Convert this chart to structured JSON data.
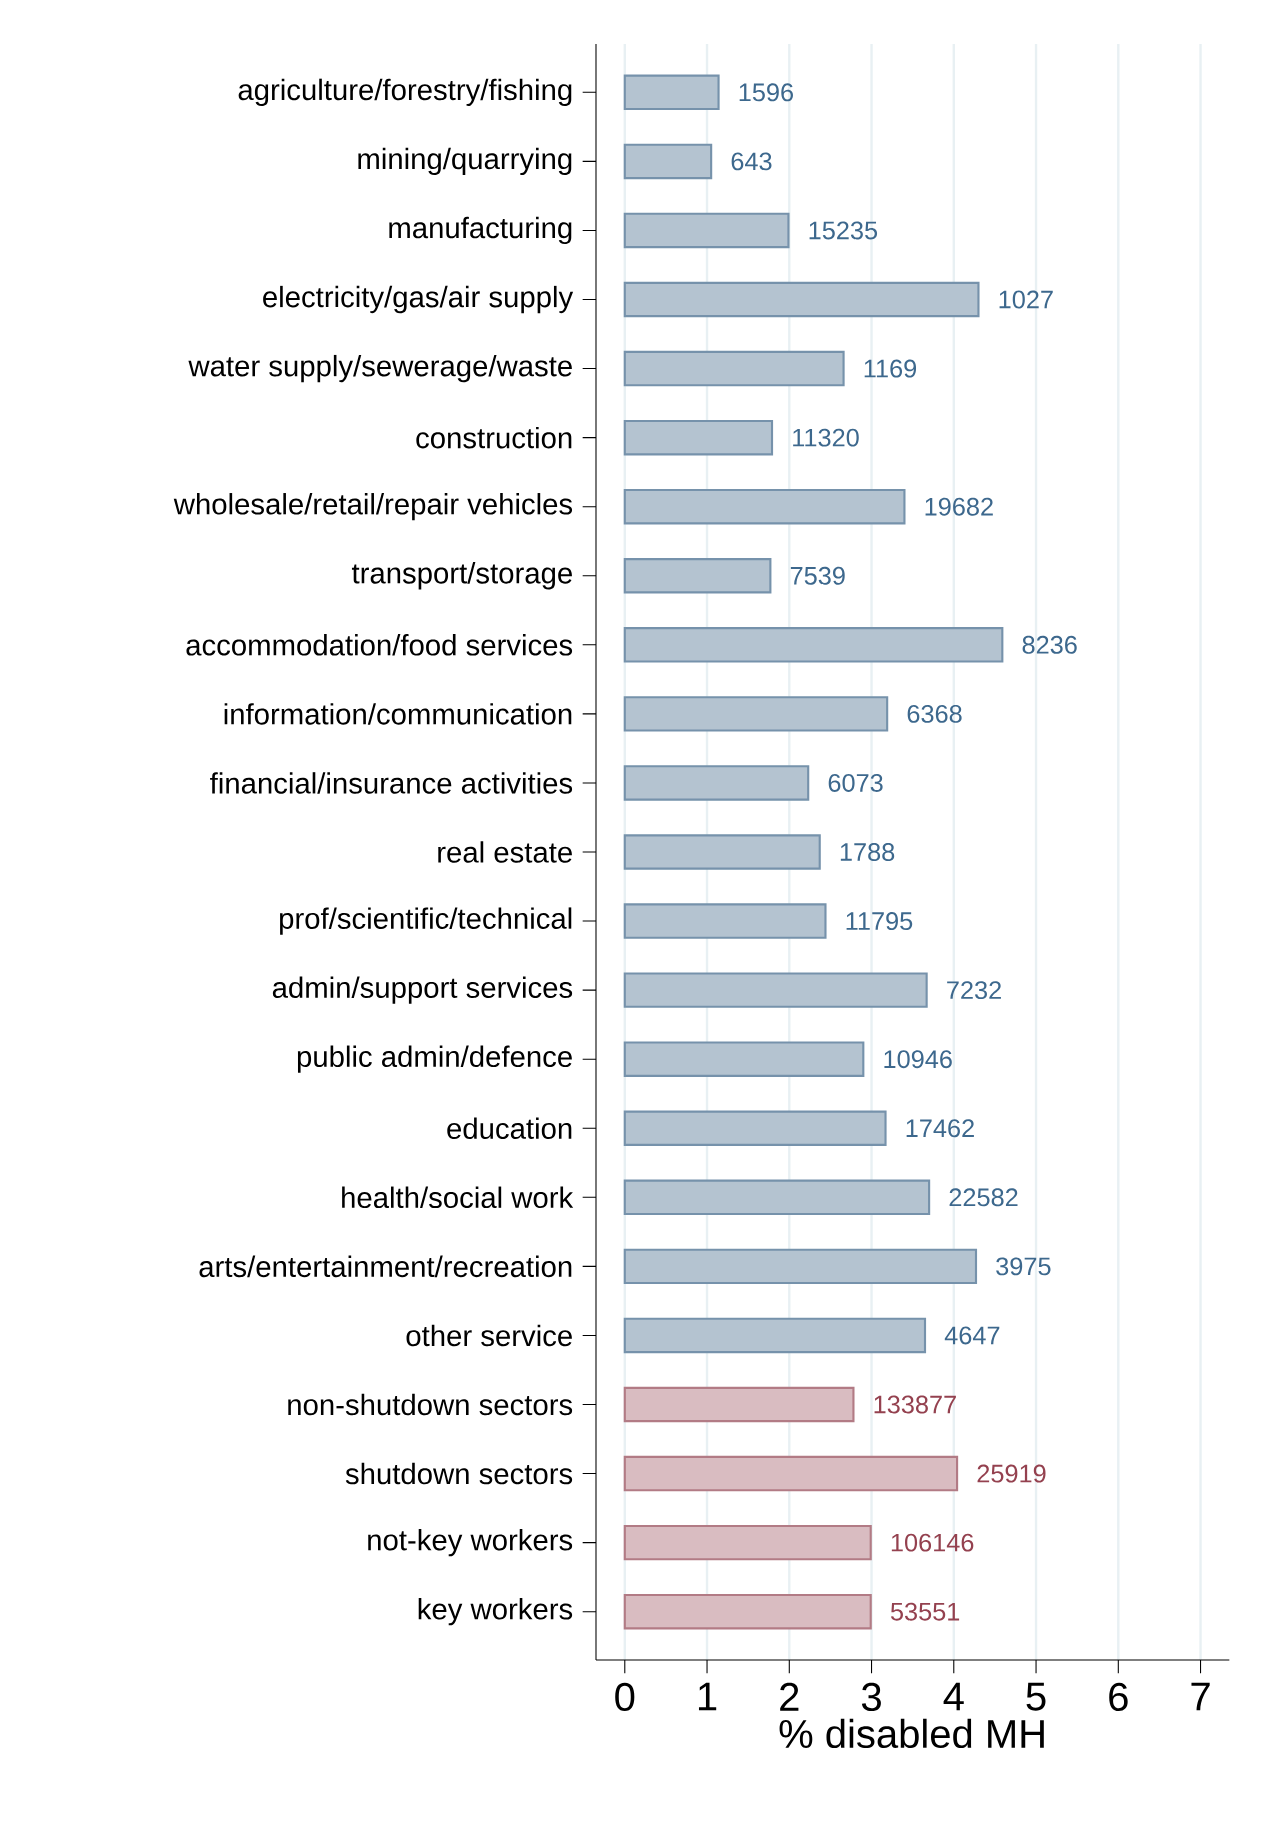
{
  "chart_data": {
    "type": "bar",
    "orientation": "horizontal",
    "xlabel": "% disabled MH",
    "categories": [
      "agriculture/forestry/fishing",
      "mining/quarrying",
      "manufacturing",
      "electricity/gas/air supply",
      "water supply/sewerage/waste",
      "construction",
      "wholesale/retail/repair vehicles",
      "transport/storage",
      "accommodation/food services",
      "information/communication",
      "financial/insurance activities",
      "real estate",
      "prof/scientific/technical",
      "admin/support services",
      "public admin/defence",
      "education",
      "health/social work",
      "arts/entertainment/recreation",
      "other service",
      "non-shutdown sectors",
      "shutdown sectors",
      "not-key workers",
      "key workers"
    ],
    "values": [
      1.14,
      1.05,
      1.99,
      4.3,
      2.66,
      1.79,
      3.4,
      1.77,
      4.59,
      3.19,
      2.23,
      2.37,
      2.44,
      3.67,
      2.9,
      3.17,
      3.7,
      4.27,
      3.65,
      2.78,
      4.04,
      2.99,
      2.99
    ],
    "annotations": [
      {
        "text": "1596",
        "x": 1.14,
        "y": "agriculture/forestry/fishing"
      },
      {
        "text": "643",
        "x": 1.05,
        "y": "mining/quarrying"
      },
      {
        "text": "15235",
        "x": 1.99,
        "y": "manufacturing"
      },
      {
        "text": "1027",
        "x": 4.3,
        "y": "electricity/gas/air supply"
      },
      {
        "text": "1169",
        "x": 2.66,
        "y": "water supply/sewerage/waste"
      },
      {
        "text": "11320",
        "x": 1.79,
        "y": "construction"
      },
      {
        "text": "19682",
        "x": 3.4,
        "y": "wholesale/retail/repair vehicles"
      },
      {
        "text": "7539",
        "x": 1.77,
        "y": "transport/storage"
      },
      {
        "text": "8236",
        "x": 4.59,
        "y": "accommodation/food services"
      },
      {
        "text": "6368",
        "x": 3.19,
        "y": "information/communication"
      },
      {
        "text": "6073",
        "x": 2.23,
        "y": "financial/insurance activities"
      },
      {
        "text": "1788",
        "x": 2.37,
        "y": "real estate"
      },
      {
        "text": "11795",
        "x": 2.44,
        "y": "prof/scientific/technical"
      },
      {
        "text": "7232",
        "x": 3.67,
        "y": "admin/support services"
      },
      {
        "text": "10946",
        "x": 2.9,
        "y": "public admin/defence"
      },
      {
        "text": "17462",
        "x": 3.17,
        "y": "education"
      },
      {
        "text": "22582",
        "x": 3.7,
        "y": "health/social work"
      },
      {
        "text": "3975",
        "x": 4.27,
        "y": "arts/entertainment/recreation"
      },
      {
        "text": "4647",
        "x": 3.65,
        "y": "other service"
      },
      {
        "text": "133877",
        "x": 2.78,
        "y": "non-shutdown sectors"
      },
      {
        "text": "25919",
        "x": 4.04,
        "y": "shutdown sectors"
      },
      {
        "text": "106146",
        "x": 2.99,
        "y": "not-key workers"
      },
      {
        "text": "53551",
        "x": 2.99,
        "y": "key workers"
      }
    ],
    "colors": [
      "#b4c3d0",
      "#b4c3d0",
      "#b4c3d0",
      "#b4c3d0",
      "#b4c3d0",
      "#b4c3d0",
      "#b4c3d0",
      "#b4c3d0",
      "#b4c3d0",
      "#b4c3d0",
      "#b4c3d0",
      "#b4c3d0",
      "#b4c3d0",
      "#b4c3d0",
      "#b4c3d0",
      "#b4c3d0",
      "#b4c3d0",
      "#b4c3d0",
      "#b4c3d0",
      "#d9bcc1",
      "#d9bcc1",
      "#d9bcc1",
      "#d9bcc1"
    ],
    "xlim": [
      -0.35,
      7.35
    ],
    "xticks": [
      0,
      1,
      2,
      3,
      4,
      5,
      6,
      7
    ],
    "grid": "x"
  }
}
